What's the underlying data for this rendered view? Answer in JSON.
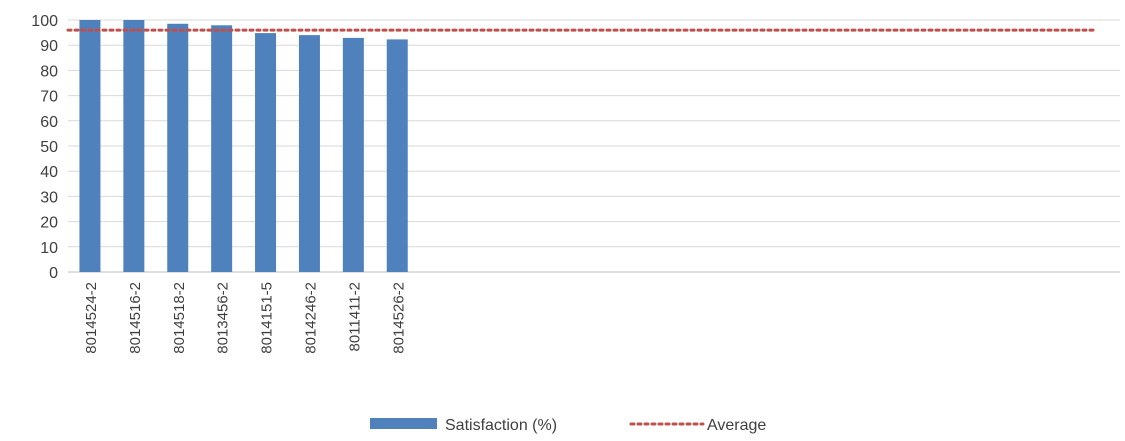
{
  "chart_data": {
    "type": "bar",
    "categories": [
      "8014524-2",
      "8014516-2",
      "8014518-2",
      "8013456-2",
      "8014151-5",
      "8014246-2",
      "8011411-2",
      "8014526-2"
    ],
    "series": [
      {
        "name": "Satisfaction (%)",
        "type": "bar",
        "values": [
          100,
          100,
          98.5,
          97.9,
          94.8,
          94.0,
          92.9,
          92.3
        ],
        "color": "#4F81BD"
      },
      {
        "name": "Average",
        "type": "line",
        "value": 96,
        "style": "dotted",
        "color": "#C0504D"
      }
    ],
    "ylim": [
      0,
      100
    ],
    "yticks": [
      0,
      10,
      20,
      30,
      40,
      50,
      60,
      70,
      80,
      90,
      100
    ],
    "grid": true,
    "legend": "bottom"
  }
}
